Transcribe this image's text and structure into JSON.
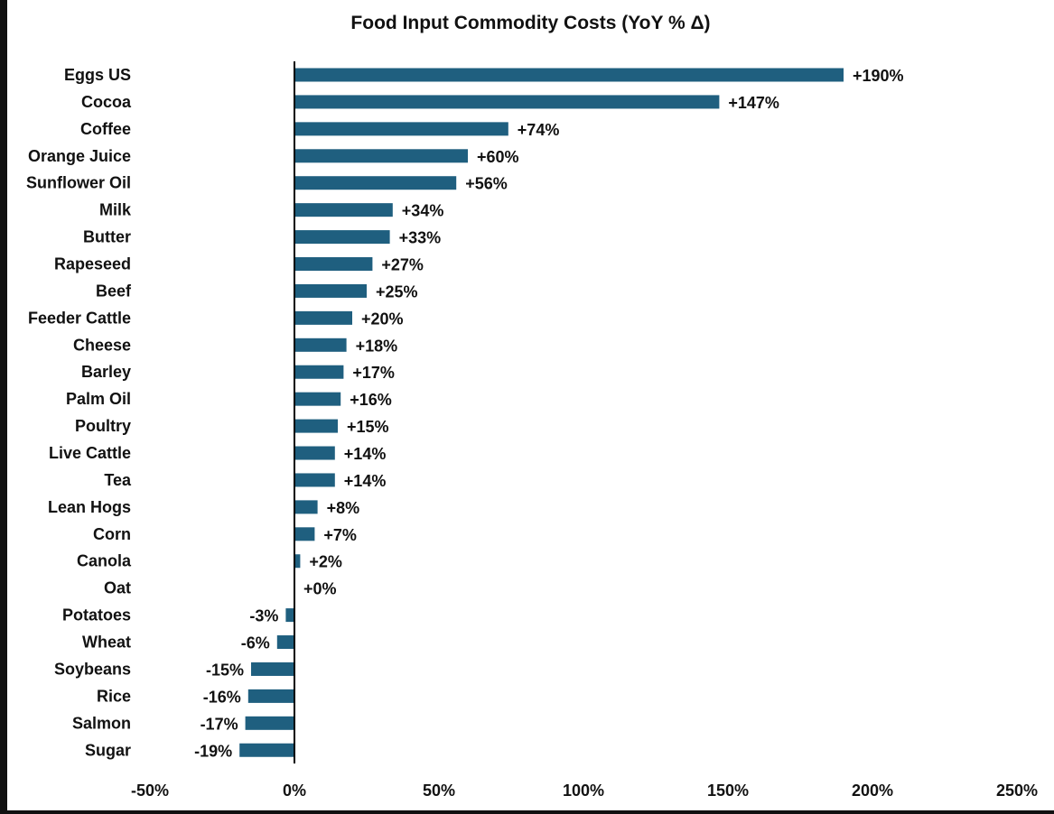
{
  "chart_data": {
    "type": "bar",
    "orientation": "horizontal",
    "title": "Food Input Commodity Costs  (YoY % Δ)",
    "xlabel": "",
    "ylabel": "",
    "xlim": [
      -50,
      250
    ],
    "x_ticks": [
      -50,
      0,
      50,
      100,
      150,
      200,
      250
    ],
    "x_tick_labels": [
      "-50%",
      "0%",
      "50%",
      "100%",
      "150%",
      "200%",
      "250%"
    ],
    "grid": false,
    "legend": "none",
    "bar_color": "#1f5f7f",
    "categories": [
      "Eggs US",
      "Cocoa",
      "Coffee",
      "Orange Juice",
      "Sunflower Oil",
      "Milk",
      "Butter",
      "Rapeseed",
      "Beef",
      "Feeder Cattle",
      "Cheese",
      "Barley",
      "Palm Oil",
      "Poultry",
      "Live Cattle",
      "Tea",
      "Lean Hogs",
      "Corn",
      "Canola",
      "Oat",
      "Potatoes",
      "Wheat",
      "Soybeans",
      "Rice",
      "Salmon",
      "Sugar"
    ],
    "values": [
      190,
      147,
      74,
      60,
      56,
      34,
      33,
      27,
      25,
      20,
      18,
      17,
      16,
      15,
      14,
      14,
      8,
      7,
      2,
      0,
      -3,
      -6,
      -15,
      -16,
      -17,
      -19
    ],
    "value_labels": [
      "+190%",
      "+147%",
      "+74%",
      "+60%",
      "+56%",
      "+34%",
      "+33%",
      "+27%",
      "+25%",
      "+20%",
      "+18%",
      "+17%",
      "+16%",
      "+15%",
      "+14%",
      "+14%",
      "+8%",
      "+7%",
      "+2%",
      "+0%",
      "-3%",
      "-6%",
      "-15%",
      "-16%",
      "-17%",
      "-19%"
    ]
  }
}
